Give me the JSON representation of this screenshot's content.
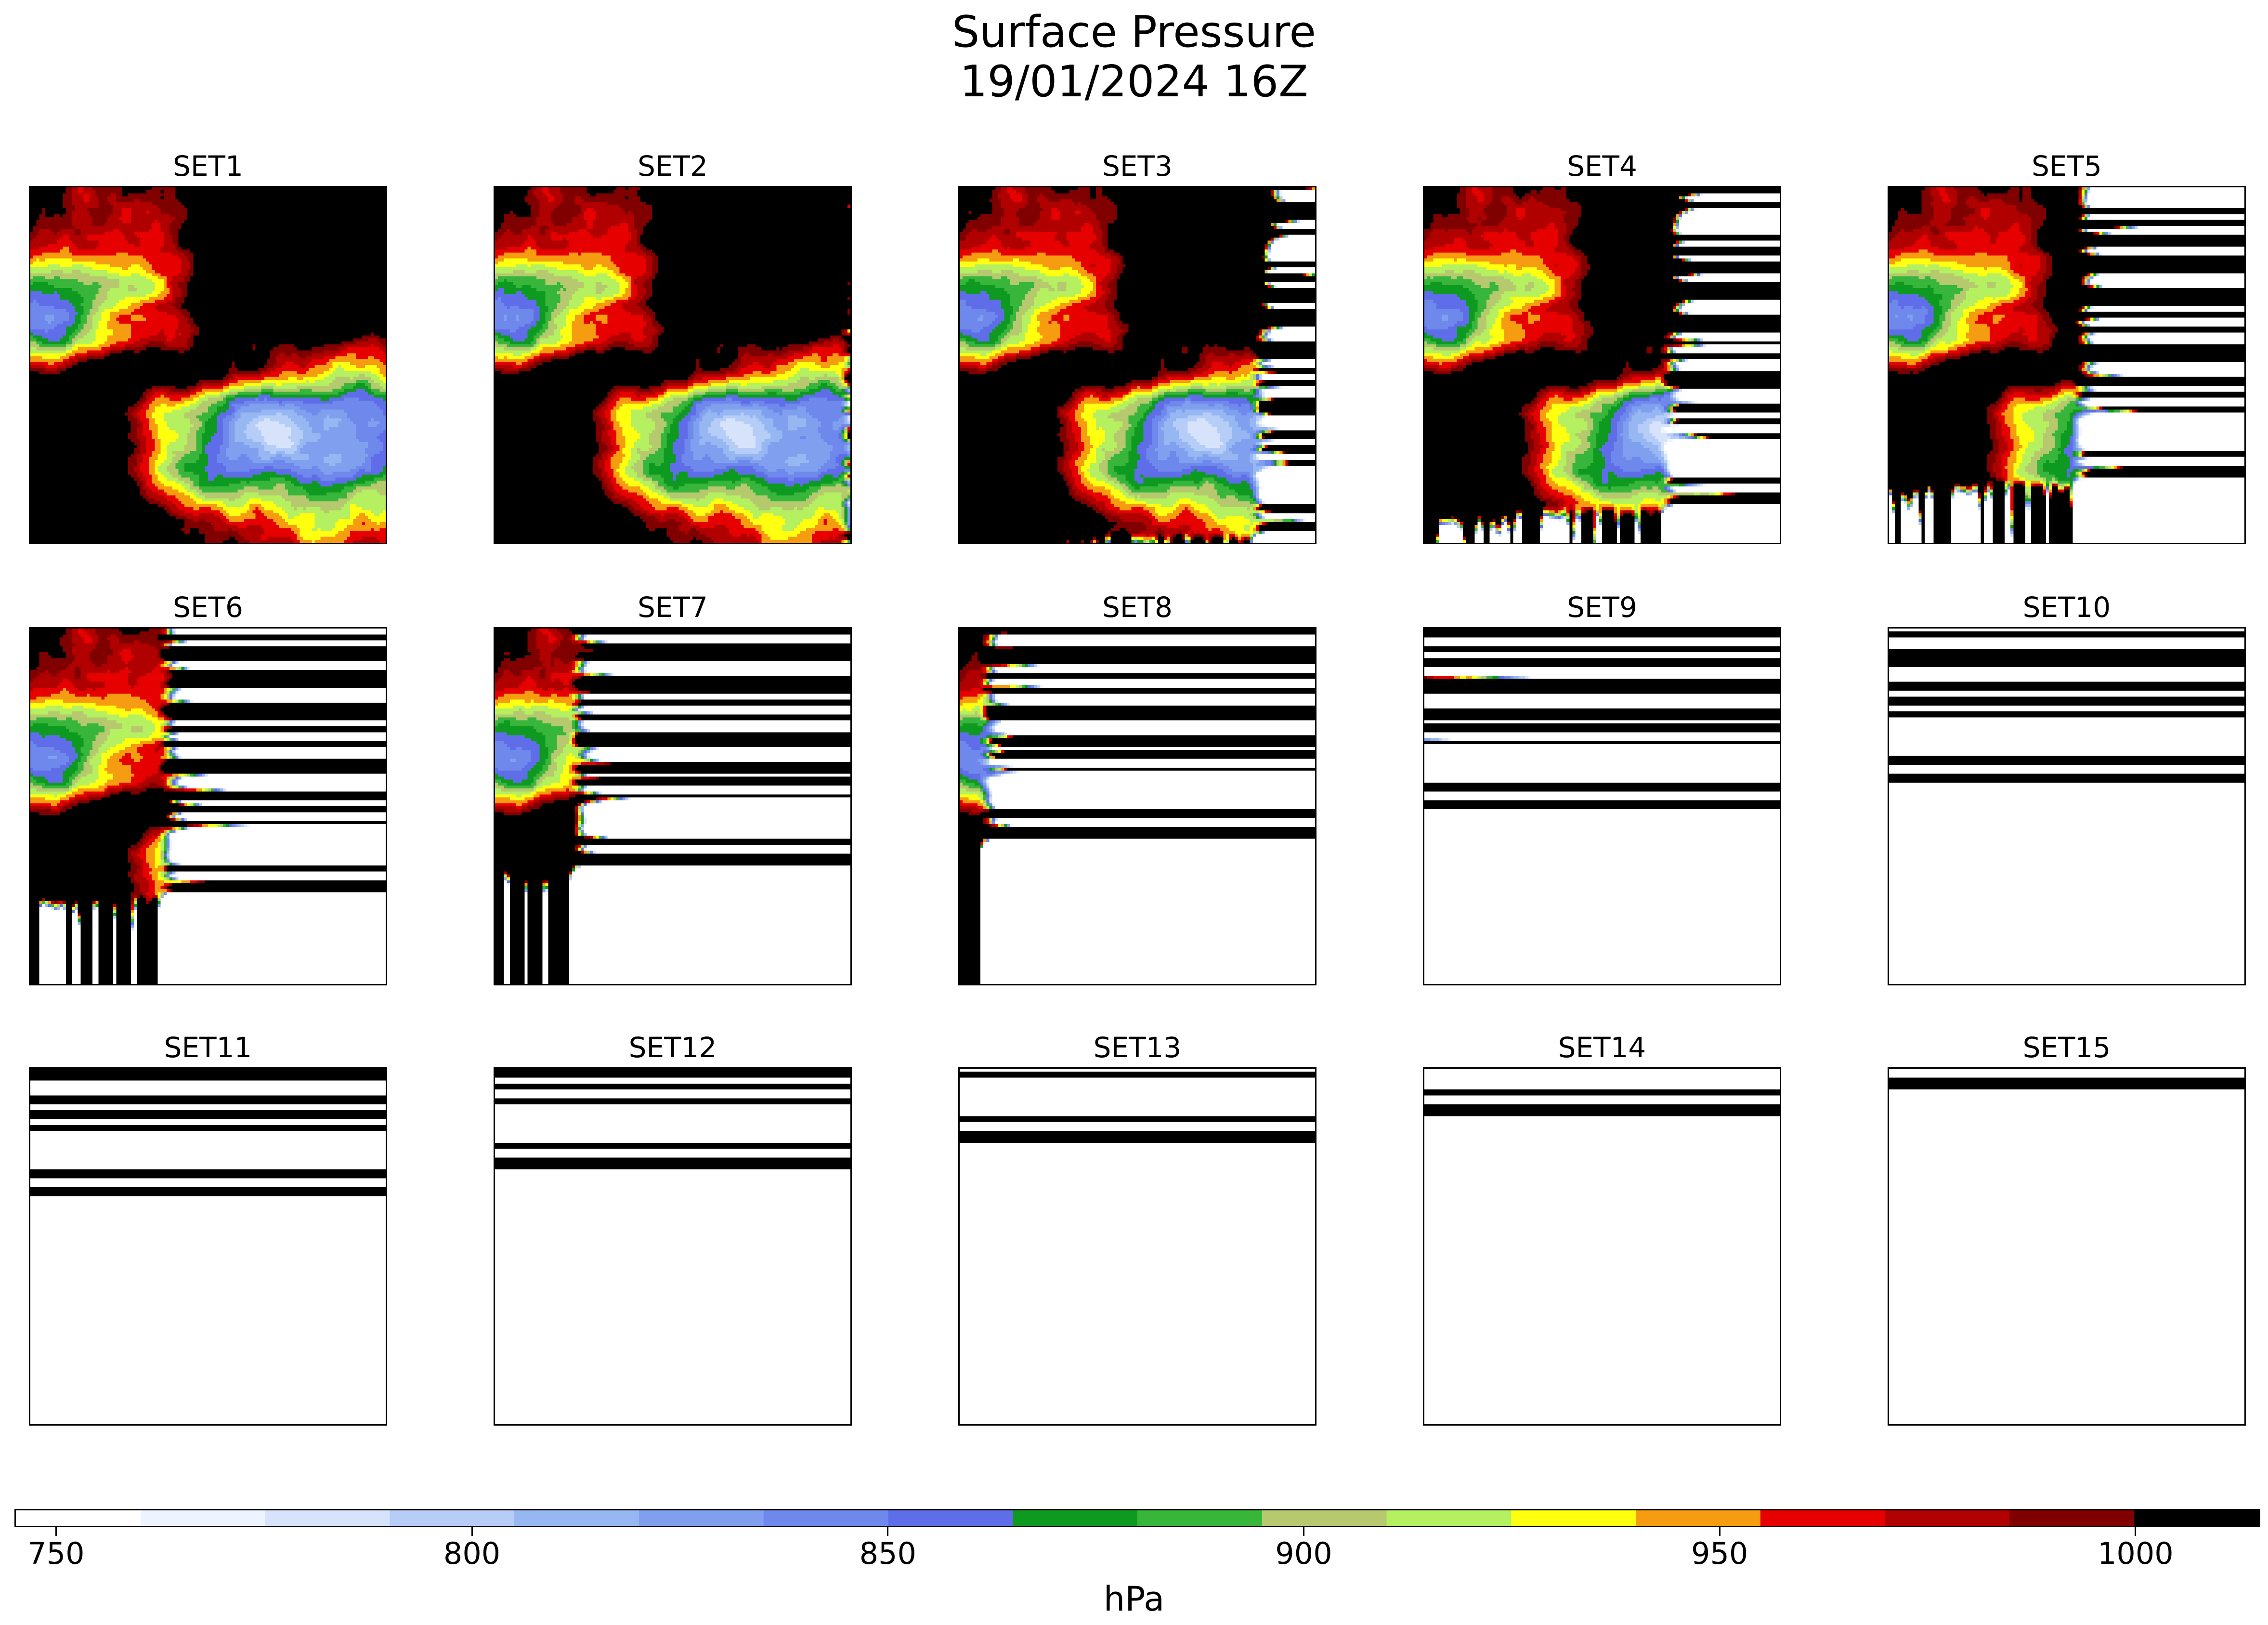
{
  "chart_data": {
    "type": "heatmap",
    "title": "Surface Pressure",
    "subtitle": "19/01/2024 16Z",
    "panels": [
      "SET1",
      "SET2",
      "SET3",
      "SET4",
      "SET5",
      "SET6",
      "SET7",
      "SET8",
      "SET9",
      "SET10",
      "SET11",
      "SET12",
      "SET13",
      "SET14",
      "SET15"
    ],
    "grid": {
      "rows": 3,
      "cols": 5
    },
    "colorbar": {
      "label": "hPa",
      "range": [
        745,
        1015
      ],
      "ticks": [
        750,
        800,
        850,
        900,
        950,
        1000
      ],
      "bins": [
        {
          "from": 745,
          "to": 760,
          "color": "#ffffff"
        },
        {
          "from": 760,
          "to": 775,
          "color": "#eef4ff"
        },
        {
          "from": 775,
          "to": 790,
          "color": "#d6e3fb"
        },
        {
          "from": 790,
          "to": 805,
          "color": "#b5cdf7"
        },
        {
          "from": 805,
          "to": 820,
          "color": "#96b7f1"
        },
        {
          "from": 820,
          "to": 835,
          "color": "#80a0ef"
        },
        {
          "from": 835,
          "to": 850,
          "color": "#6e88ec"
        },
        {
          "from": 850,
          "to": 865,
          "color": "#5f6ee8"
        },
        {
          "from": 865,
          "to": 880,
          "color": "#0e9a20"
        },
        {
          "from": 880,
          "to": 895,
          "color": "#38b63c"
        },
        {
          "from": 895,
          "to": 910,
          "color": "#b6c96e"
        },
        {
          "from": 910,
          "to": 925,
          "color": "#b4f060"
        },
        {
          "from": 925,
          "to": 940,
          "color": "#ffff10"
        },
        {
          "from": 940,
          "to": 955,
          "color": "#f59c10"
        },
        {
          "from": 955,
          "to": 970,
          "color": "#e60000"
        },
        {
          "from": 970,
          "to": 985,
          "color": "#b00000"
        },
        {
          "from": 985,
          "to": 1000,
          "color": "#800000"
        },
        {
          "from": 1000,
          "to": 1015,
          "color": "#000000"
        }
      ]
    }
  }
}
